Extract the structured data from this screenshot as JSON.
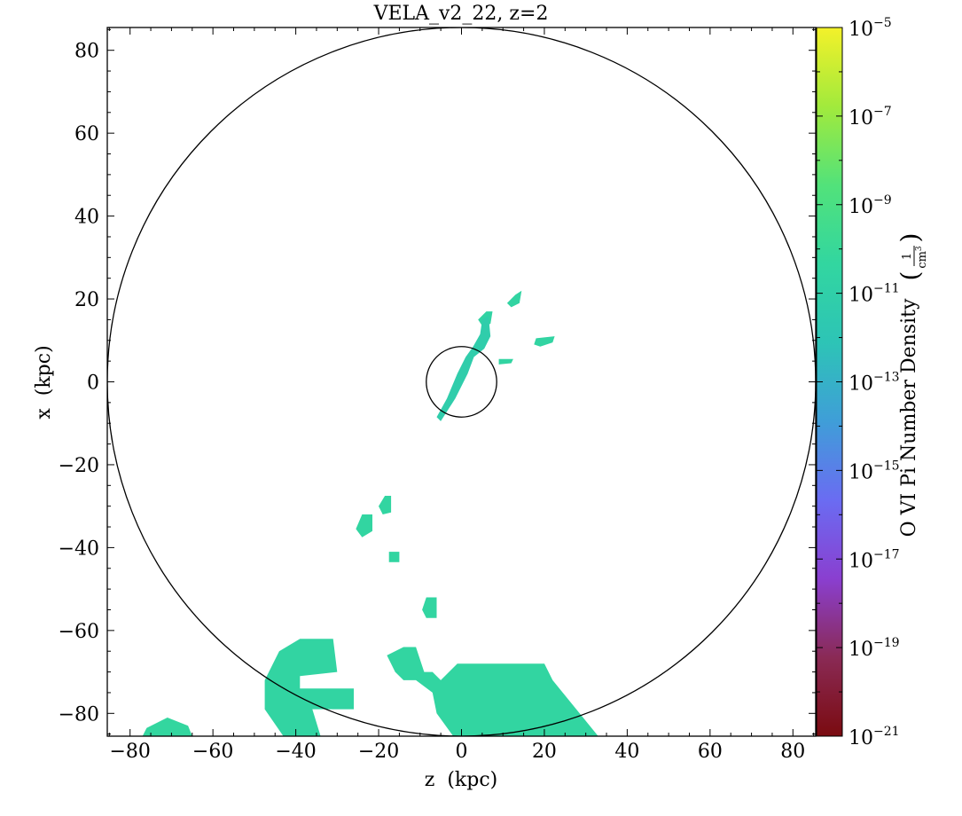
{
  "chart_data": {
    "type": "heatmap",
    "title": "VELA_v2_22, z=2",
    "xlabel": "z  (kpc)",
    "ylabel": "x  (kpc)",
    "xlim": [
      -85.5,
      85.5
    ],
    "ylim": [
      -85.5,
      85.5
    ],
    "x_ticks": [
      -80,
      -60,
      -40,
      -20,
      0,
      20,
      40,
      60,
      80
    ],
    "y_ticks": [
      -80,
      -60,
      -40,
      -20,
      0,
      20,
      40,
      60,
      80
    ],
    "x_tick_labels": [
      "−80",
      "−60",
      "−40",
      "−20",
      "0",
      "20",
      "40",
      "60",
      "80"
    ],
    "y_tick_labels": [
      "−80",
      "−60",
      "−40",
      "−20",
      "0",
      "20",
      "40",
      "60",
      "80"
    ],
    "colorbar": {
      "label": "O VI Pi Number Density",
      "unit_numerator": "1",
      "unit_denominator": "cm",
      "unit_power": "3",
      "scale": "log",
      "range_exponent": [
        -21,
        -5
      ],
      "tick_exponents": [
        -5,
        -7,
        -9,
        -11,
        -13,
        -15,
        -17,
        -19,
        -21
      ],
      "tick_base": "10",
      "tick_labels": [
        "−5",
        "−7",
        "−9",
        "−11",
        "−13",
        "−15",
        "−17",
        "−19",
        "−21"
      ],
      "colors": [
        "#7a0b10",
        "#8a2a55",
        "#8a3fd0",
        "#6a6cf2",
        "#3f9ed8",
        "#2dc4b6",
        "#32d6a0",
        "#52e27a",
        "#a2ea3c",
        "#f3f12a"
      ]
    },
    "circles": [
      {
        "name": "outer-circle",
        "cx": 0,
        "cy": 0,
        "r": 85.5
      },
      {
        "name": "inner-circle",
        "cx": 0,
        "cy": 0,
        "r": 8.5
      }
    ],
    "regions": [
      {
        "name": "clump-ne-1",
        "log_density": -10.5,
        "points": [
          [
            13,
            21
          ],
          [
            14.5,
            22
          ],
          [
            14,
            19
          ],
          [
            12,
            18
          ],
          [
            11,
            19
          ]
        ]
      },
      {
        "name": "clump-ne-2",
        "log_density": -10.6,
        "points": [
          [
            6,
            17
          ],
          [
            7.5,
            17
          ],
          [
            7,
            14
          ],
          [
            5,
            13.5
          ],
          [
            4,
            15
          ]
        ]
      },
      {
        "name": "clump-east",
        "log_density": -10.5,
        "points": [
          [
            18,
            10.5
          ],
          [
            22.5,
            11
          ],
          [
            22,
            9.5
          ],
          [
            19,
            8.5
          ],
          [
            17.5,
            9
          ]
        ]
      },
      {
        "name": "clump-mid-east",
        "log_density": -10.5,
        "points": [
          [
            9,
            5.5
          ],
          [
            12.5,
            5.5
          ],
          [
            12,
            4.5
          ],
          [
            9,
            4.2
          ]
        ]
      },
      {
        "name": "filament",
        "log_density": -11.2,
        "points": [
          [
            6.5,
            16
          ],
          [
            7,
            11
          ],
          [
            5.5,
            8
          ],
          [
            3,
            6
          ],
          [
            1.5,
            2
          ],
          [
            -1.5,
            -4
          ],
          [
            -5,
            -9.5
          ],
          [
            -6,
            -8.5
          ],
          [
            -3.5,
            -4
          ],
          [
            -1,
            2
          ],
          [
            1,
            6
          ],
          [
            2.8,
            8.5
          ],
          [
            4.5,
            11.5
          ],
          [
            5,
            15
          ]
        ]
      },
      {
        "name": "clump-w-1",
        "log_density": -10.4,
        "points": [
          [
            -18.5,
            -27.5
          ],
          [
            -17,
            -27.5
          ],
          [
            -17,
            -31.5
          ],
          [
            -19,
            -32
          ],
          [
            -20,
            -30
          ]
        ]
      },
      {
        "name": "clump-w-2",
        "log_density": -10.4,
        "points": [
          [
            -24,
            -32
          ],
          [
            -21.5,
            -32
          ],
          [
            -21.5,
            -36
          ],
          [
            -24,
            -37.5
          ],
          [
            -25.5,
            -35.5
          ]
        ]
      },
      {
        "name": "clump-w-3",
        "log_density": -10.4,
        "points": [
          [
            -17.5,
            -41
          ],
          [
            -15,
            -41
          ],
          [
            -15,
            -43.5
          ],
          [
            -17.5,
            -43.5
          ]
        ]
      },
      {
        "name": "clump-w-4",
        "log_density": -10.4,
        "points": [
          [
            -8.5,
            -52
          ],
          [
            -6,
            -52
          ],
          [
            -6,
            -57
          ],
          [
            -8.5,
            -57
          ],
          [
            -9.5,
            -55
          ]
        ]
      },
      {
        "name": "large-blob-west",
        "log_density": -10.5,
        "points": [
          [
            -47.5,
            -72
          ],
          [
            -44,
            -65
          ],
          [
            -39,
            -62
          ],
          [
            -31,
            -62
          ],
          [
            -30,
            -70
          ],
          [
            -39,
            -71
          ],
          [
            -39,
            -74
          ],
          [
            -26,
            -74
          ],
          [
            -26,
            -79
          ],
          [
            -36,
            -79
          ],
          [
            -34,
            -85.5
          ],
          [
            -43,
            -85.5
          ],
          [
            -47.5,
            -79
          ]
        ]
      },
      {
        "name": "large-blob-south",
        "log_density": -10.4,
        "points": [
          [
            -18,
            -66
          ],
          [
            -14,
            -64
          ],
          [
            -11,
            -64
          ],
          [
            -9,
            -70
          ],
          [
            -7,
            -70
          ],
          [
            -5,
            -72
          ],
          [
            -1,
            -68
          ],
          [
            17,
            -68
          ],
          [
            20,
            -68
          ],
          [
            22,
            -72
          ],
          [
            33,
            -85.5
          ],
          [
            -2,
            -85.5
          ],
          [
            -6,
            -80
          ],
          [
            -7,
            -75
          ],
          [
            -11,
            -72
          ],
          [
            -14,
            -72
          ],
          [
            -16,
            -70
          ]
        ]
      },
      {
        "name": "blob-southwest",
        "log_density": -10.3,
        "points": [
          [
            -77,
            -85.5
          ],
          [
            -76,
            -83.5
          ],
          [
            -71,
            -81
          ],
          [
            -66,
            -83
          ],
          [
            -65,
            -85.5
          ]
        ]
      }
    ]
  }
}
